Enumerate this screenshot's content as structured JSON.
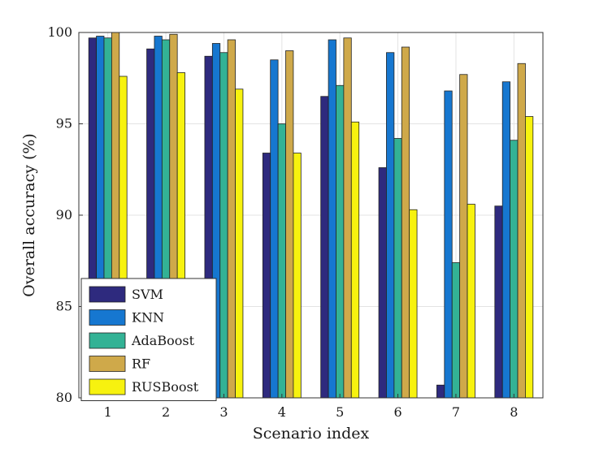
{
  "chart_data": {
    "type": "bar",
    "title": "",
    "xlabel": "Scenario index",
    "ylabel": "Overall accuracy (%)",
    "categories": [
      "1",
      "2",
      "3",
      "4",
      "5",
      "6",
      "7",
      "8"
    ],
    "ylim": [
      80,
      100
    ],
    "yticks": [
      "80",
      "85",
      "90",
      "95",
      "100"
    ],
    "grid": true,
    "legend_position": "bottom-left",
    "series": [
      {
        "name": "SVM",
        "color": "#2e2a7e",
        "values": [
          99.7,
          99.1,
          98.7,
          93.4,
          96.5,
          92.6,
          80.7,
          90.5
        ]
      },
      {
        "name": "KNN",
        "color": "#1677d0",
        "values": [
          99.8,
          99.8,
          99.4,
          98.5,
          99.6,
          98.9,
          96.8,
          97.3
        ]
      },
      {
        "name": "AdaBoost",
        "color": "#33b295",
        "values": [
          99.7,
          99.6,
          98.9,
          95.0,
          97.1,
          94.2,
          87.4,
          94.1
        ]
      },
      {
        "name": "RF",
        "color": "#cfa94a",
        "values": [
          100.0,
          99.9,
          99.6,
          99.0,
          99.7,
          99.2,
          97.7,
          98.3
        ]
      },
      {
        "name": "RUSBoost",
        "color": "#f7f20f",
        "values": [
          97.6,
          97.8,
          96.9,
          93.4,
          95.1,
          90.3,
          90.6,
          95.4
        ]
      }
    ]
  }
}
